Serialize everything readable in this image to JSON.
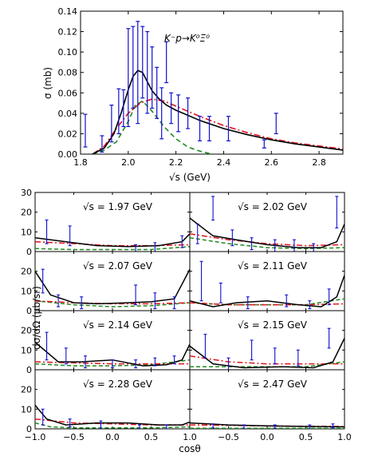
{
  "top": {
    "annotation": "K⁻p→K⁰Ξ⁰",
    "xlabel": "√s  (GeV)",
    "ylabel": "σ  (mb)",
    "xticks": [
      "1.8",
      "2.0",
      "2.2",
      "2.4",
      "2.6",
      "2.8"
    ],
    "yticks": [
      "0.00",
      "0.02",
      "0.04",
      "0.06",
      "0.08",
      "0.10",
      "0.12",
      "0.14"
    ]
  },
  "bottom": {
    "ylabel": "dσ/dΩ  (μb/sr)",
    "xlabel": "cosθ",
    "yticks": [
      "0",
      "10",
      "20",
      "30"
    ],
    "xticks_left": [
      "−1.0",
      "−0.5",
      "0.0",
      "0.5",
      "1.0"
    ],
    "xticks_right": [
      "−0.5",
      "0.0",
      "0.5",
      "1.0"
    ],
    "panel_labels": [
      "√s = 1.97 GeV",
      "√s = 2.02 GeV",
      "√s = 2.07 GeV",
      "√s = 2.11 GeV",
      "√s = 2.14 GeV",
      "√s = 2.15 GeV",
      "√s = 2.28 GeV",
      "√s = 2.47 GeV"
    ]
  },
  "colors": {
    "data": "#1010d0",
    "full": "#000000",
    "red_dashdot": "#e0141e",
    "green_dashed": "#1f8a1f"
  },
  "chart_data": [
    {
      "type": "line",
      "xlabel": "√s  (GeV)",
      "ylabel": "σ  (mb)",
      "xlim": [
        1.8,
        2.9
      ],
      "ylim": [
        0,
        0.14
      ],
      "data_points": [
        {
          "x": 1.82,
          "y": 0.023,
          "err": 0.016
        },
        {
          "x": 1.89,
          "y": 0.01,
          "err": 0.008
        },
        {
          "x": 1.93,
          "y": 0.03,
          "err": 0.018
        },
        {
          "x": 1.96,
          "y": 0.042,
          "err": 0.022
        },
        {
          "x": 1.98,
          "y": 0.045,
          "err": 0.018
        },
        {
          "x": 2.0,
          "y": 0.075,
          "err": 0.048
        },
        {
          "x": 2.02,
          "y": 0.085,
          "err": 0.04
        },
        {
          "x": 2.04,
          "y": 0.08,
          "err": 0.05
        },
        {
          "x": 2.06,
          "y": 0.09,
          "err": 0.035
        },
        {
          "x": 2.08,
          "y": 0.08,
          "err": 0.04
        },
        {
          "x": 2.1,
          "y": 0.075,
          "err": 0.03
        },
        {
          "x": 2.12,
          "y": 0.06,
          "err": 0.025
        },
        {
          "x": 2.14,
          "y": 0.04,
          "err": 0.025
        },
        {
          "x": 2.16,
          "y": 0.09,
          "err": 0.02
        },
        {
          "x": 2.18,
          "y": 0.045,
          "err": 0.015
        },
        {
          "x": 2.21,
          "y": 0.04,
          "err": 0.018
        },
        {
          "x": 2.25,
          "y": 0.04,
          "err": 0.015
        },
        {
          "x": 2.3,
          "y": 0.025,
          "err": 0.012
        },
        {
          "x": 2.34,
          "y": 0.025,
          "err": 0.012
        },
        {
          "x": 2.42,
          "y": 0.025,
          "err": 0.012
        },
        {
          "x": 2.57,
          "y": 0.01,
          "err": 0.004
        },
        {
          "x": 2.62,
          "y": 0.03,
          "err": 0.01
        }
      ],
      "full_curve": {
        "x": [
          1.85,
          1.9,
          1.94,
          1.97,
          2.0,
          2.02,
          2.04,
          2.06,
          2.08,
          2.1,
          2.13,
          2.16,
          2.2,
          2.25,
          2.3,
          2.4,
          2.5,
          2.6,
          2.7,
          2.8,
          2.9
        ],
        "y": [
          0.0,
          0.006,
          0.02,
          0.04,
          0.063,
          0.076,
          0.082,
          0.08,
          0.071,
          0.062,
          0.054,
          0.048,
          0.043,
          0.038,
          0.033,
          0.025,
          0.019,
          0.014,
          0.01,
          0.007,
          0.004
        ]
      },
      "red_dashdot_curve": {
        "x": [
          1.85,
          1.9,
          1.95,
          2.0,
          2.05,
          2.1,
          2.15,
          2.2,
          2.3,
          2.4,
          2.5,
          2.6,
          2.7,
          2.8,
          2.9
        ],
        "y": [
          0.0,
          0.008,
          0.025,
          0.04,
          0.05,
          0.054,
          0.052,
          0.047,
          0.037,
          0.028,
          0.021,
          0.015,
          0.011,
          0.008,
          0.005
        ]
      },
      "green_dashed_curve": {
        "x": [
          1.85,
          1.9,
          1.95,
          2.0,
          2.03,
          2.06,
          2.1,
          2.15,
          2.2,
          2.25,
          2.3,
          2.35
        ],
        "y": [
          0.0,
          0.004,
          0.012,
          0.032,
          0.048,
          0.052,
          0.042,
          0.027,
          0.015,
          0.007,
          0.003,
          0.0
        ]
      }
    },
    {
      "type": "line",
      "xlabel": "cosθ",
      "ylabel": "dσ/dΩ  (μb/sr)",
      "xlim": [
        -1,
        1
      ],
      "ylim": [
        0,
        30
      ],
      "panels": [
        {
          "label": "√s = 1.97 GeV",
          "data_points": [
            {
              "x": -0.85,
              "y": 10.0,
              "err": 6.0
            },
            {
              "x": -0.55,
              "y": 8.0,
              "err": 5.0
            },
            {
              "x": 0.3,
              "y": 1.5,
              "err": 2.0
            },
            {
              "x": 0.55,
              "y": 2.0,
              "err": 2.5
            },
            {
              "x": 0.9,
              "y": 5.0,
              "err": 3.0
            }
          ],
          "full_curve": {
            "x": [
              -1,
              -0.6,
              -0.2,
              0.2,
              0.6,
              0.9,
              1.0
            ],
            "y": [
              7.0,
              5.0,
              3.0,
              2.5,
              3.0,
              5.0,
              9.0
            ]
          },
          "red_curve": {
            "x": [
              -1,
              -0.5,
              0,
              0.5,
              1
            ],
            "y": [
              5.0,
              4.0,
              3.0,
              3.0,
              3.5
            ]
          },
          "green_curve": {
            "x": [
              -1,
              -0.5,
              0,
              0.5,
              1
            ],
            "y": [
              1.5,
              1.0,
              1.0,
              1.0,
              2.5
            ]
          }
        },
        {
          "label": "√s = 2.02 GeV",
          "data_points": [
            {
              "x": -0.9,
              "y": 9.0,
              "err": 5.0
            },
            {
              "x": -0.7,
              "y": 22.0,
              "err": 6.0
            },
            {
              "x": -0.45,
              "y": 7.0,
              "err": 4.0
            },
            {
              "x": -0.2,
              "y": 4.0,
              "err": 3.0
            },
            {
              "x": 0.1,
              "y": 3.0,
              "err": 3.0
            },
            {
              "x": 0.35,
              "y": 3.0,
              "err": 3.0
            },
            {
              "x": 0.6,
              "y": 2.0,
              "err": 2.0
            },
            {
              "x": 0.9,
              "y": 20.0,
              "err": 8.0
            }
          ],
          "full_curve": {
            "x": [
              -1,
              -0.7,
              -0.4,
              0,
              0.4,
              0.7,
              0.9,
              1.0
            ],
            "y": [
              17.0,
              8.0,
              6.0,
              3.5,
              2.0,
              2.0,
              5.0,
              14.0
            ]
          },
          "red_curve": {
            "x": [
              -1,
              -0.5,
              0,
              0.5,
              1
            ],
            "y": [
              9.0,
              6.0,
              4.0,
              3.0,
              3.5
            ]
          },
          "green_curve": {
            "x": [
              -1,
              -0.5,
              0,
              0.5,
              1
            ],
            "y": [
              7.0,
              4.0,
              2.0,
              1.5,
              2.0
            ]
          }
        },
        {
          "label": "√s = 2.07 GeV",
          "data_points": [
            {
              "x": -0.9,
              "y": 15.0,
              "err": 6.0
            },
            {
              "x": -0.7,
              "y": 5.0,
              "err": 3.0
            },
            {
              "x": -0.4,
              "y": 4.0,
              "err": 3.0
            },
            {
              "x": 0.3,
              "y": 8.0,
              "err": 5.0
            },
            {
              "x": 0.55,
              "y": 5.0,
              "err": 4.0
            },
            {
              "x": 0.8,
              "y": 4.0,
              "err": 3.0
            }
          ],
          "full_curve": {
            "x": [
              -1,
              -0.8,
              -0.5,
              -0.2,
              0.2,
              0.5,
              0.8,
              1.0
            ],
            "y": [
              20.0,
              8.0,
              4.0,
              3.5,
              4.0,
              4.5,
              6.0,
              21.0
            ]
          },
          "red_curve": {
            "x": [
              -1,
              -0.5,
              0,
              0.5,
              1
            ],
            "y": [
              5.0,
              4.0,
              3.5,
              3.5,
              4.0
            ]
          },
          "green_curve": {
            "x": [
              -1,
              -0.5,
              0,
              0.5,
              1
            ],
            "y": [
              5.0,
              3.0,
              2.0,
              2.5,
              4.0
            ]
          }
        },
        {
          "label": "√s = 2.11 GeV",
          "data_points": [
            {
              "x": -0.85,
              "y": 15.0,
              "err": 10.0
            },
            {
              "x": -0.6,
              "y": 9.0,
              "err": 5.0
            },
            {
              "x": -0.25,
              "y": 4.0,
              "err": 3.0
            },
            {
              "x": 0.25,
              "y": 5.0,
              "err": 3.0
            },
            {
              "x": 0.55,
              "y": 3.0,
              "err": 2.0
            },
            {
              "x": 0.8,
              "y": 7.0,
              "err": 4.0
            }
          ],
          "full_curve": {
            "x": [
              -1,
              -0.7,
              -0.4,
              0,
              0.4,
              0.7,
              0.9,
              1.0
            ],
            "y": [
              5.0,
              2.0,
              4.0,
              5.0,
              3.0,
              2.0,
              7.0,
              18.0
            ]
          },
          "red_curve": {
            "x": [
              -1,
              -0.5,
              0,
              0.5,
              1
            ],
            "y": [
              4.0,
              3.0,
              3.0,
              3.0,
              3.5
            ]
          },
          "green_curve": {
            "x": [
              -1,
              -0.5,
              0,
              0.5,
              1
            ],
            "y": [
              4.0,
              3.0,
              3.0,
              3.0,
              6.0
            ]
          }
        },
        {
          "label": "√s = 2.14 GeV",
          "data_points": [
            {
              "x": -0.85,
              "y": 12.0,
              "err": 7.0
            },
            {
              "x": -0.6,
              "y": 7.0,
              "err": 4.0
            },
            {
              "x": -0.35,
              "y": 4.0,
              "err": 3.0
            },
            {
              "x": 0.0,
              "y": 3.0,
              "err": 2.0
            },
            {
              "x": 0.3,
              "y": 3.0,
              "err": 2.0
            },
            {
              "x": 0.55,
              "y": 4.0,
              "err": 2.0
            },
            {
              "x": 0.8,
              "y": 5.0,
              "err": 2.0
            }
          ],
          "full_curve": {
            "x": [
              -1,
              -0.7,
              -0.4,
              0,
              0.4,
              0.7,
              0.9,
              1.0
            ],
            "y": [
              14.0,
              4.0,
              4.0,
              5.0,
              2.0,
              2.5,
              5.0,
              13.0
            ]
          },
          "red_curve": {
            "x": [
              -1,
              -0.5,
              0,
              0.5,
              1
            ],
            "y": [
              4.0,
              3.5,
              3.0,
              3.0,
              3.0
            ]
          },
          "green_curve": {
            "x": [
              -1,
              -0.5,
              0,
              0.5,
              1
            ],
            "y": [
              3.0,
              2.0,
              2.0,
              2.5,
              5.0
            ]
          }
        },
        {
          "label": "√s = 2.15 GeV",
          "data_points": [
            {
              "x": -0.8,
              "y": 12.0,
              "err": 6.0
            },
            {
              "x": -0.5,
              "y": 3.0,
              "err": 3.0
            },
            {
              "x": -0.2,
              "y": 10.0,
              "err": 5.0
            },
            {
              "x": 0.1,
              "y": 7.0,
              "err": 4.0
            },
            {
              "x": 0.4,
              "y": 6.0,
              "err": 4.0
            },
            {
              "x": 0.8,
              "y": 16.0,
              "err": 5.0
            }
          ],
          "full_curve": {
            "x": [
              -1,
              -0.7,
              -0.3,
              0.2,
              0.6,
              0.85,
              1.0
            ],
            "y": [
              12.0,
              3.0,
              1.0,
              1.5,
              1.0,
              4.0,
              16.0
            ]
          },
          "red_curve": {
            "x": [
              -1,
              -0.5,
              0,
              0.5,
              1
            ],
            "y": [
              7.0,
              4.0,
              3.0,
              3.0,
              3.0
            ]
          },
          "green_curve": {
            "x": [
              -1,
              -0.5,
              0,
              0.5,
              1
            ],
            "y": [
              1.5,
              1.5,
              1.5,
              1.5,
              4.0
            ]
          }
        },
        {
          "label": "√s = 2.28 GeV",
          "data_points": [
            {
              "x": -0.9,
              "y": 6.0,
              "err": 4.0
            },
            {
              "x": -0.55,
              "y": 3.0,
              "err": 2.0
            },
            {
              "x": -0.15,
              "y": 2.0,
              "err": 2.0
            },
            {
              "x": 0.35,
              "y": 1.0,
              "err": 1.0
            },
            {
              "x": 0.7,
              "y": 1.0,
              "err": 1.0
            }
          ],
          "full_curve": {
            "x": [
              -1,
              -0.85,
              -0.6,
              -0.2,
              0.2,
              0.6,
              0.9,
              1.0
            ],
            "y": [
              12.0,
              5.0,
              2.0,
              3.0,
              3.0,
              2.0,
              2.0,
              3.5
            ]
          },
          "red_curve": {
            "x": [
              -1,
              -0.5,
              0,
              0.5,
              1
            ],
            "y": [
              5.0,
              3.0,
              2.5,
              2.0,
              2.0
            ]
          },
          "green_curve": {
            "x": [
              -1,
              -0.8,
              -0.5,
              0,
              0.5,
              1
            ],
            "y": [
              3.0,
              1.0,
              0.5,
              0.5,
              0.5,
              1.0
            ]
          }
        },
        {
          "label": "√s = 2.47 GeV",
          "data_points": [
            {
              "x": -0.7,
              "y": 1.5,
              "err": 1.0
            },
            {
              "x": -0.3,
              "y": 1.0,
              "err": 1.0
            },
            {
              "x": 0.1,
              "y": 1.0,
              "err": 1.0
            },
            {
              "x": 0.55,
              "y": 1.0,
              "err": 1.0
            },
            {
              "x": 0.85,
              "y": 1.5,
              "err": 1.0
            }
          ],
          "full_curve": {
            "x": [
              -1,
              -0.5,
              0,
              0.5,
              1.0
            ],
            "y": [
              3.0,
              2.0,
              1.5,
              1.2,
              1.0
            ]
          },
          "red_curve": {
            "x": [
              -1,
              -0.5,
              0,
              0.5,
              1
            ],
            "y": [
              2.0,
              1.8,
              1.5,
              1.3,
              1.2
            ]
          },
          "green_curve": {
            "x": [
              -1,
              -0.5,
              0,
              0.5,
              1
            ],
            "y": [
              0.3,
              0.3,
              0.3,
              0.3,
              0.3
            ]
          }
        }
      ]
    }
  ]
}
